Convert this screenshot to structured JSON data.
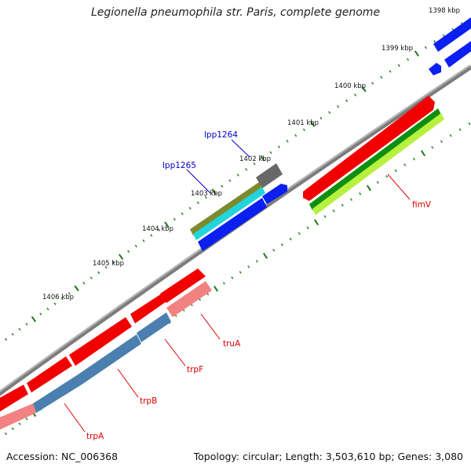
{
  "title": "Legionella pneumophila str. Paris, complete genome",
  "accession_text": "Accession: NC_006368",
  "summary_text": "Topology: circular; Length: 3,503,610 bp; Genes: 3,080",
  "colors": {
    "backbone": "#8a8a8a",
    "tick_major": "#1a7a1a",
    "tick_minor": "#2e8b2e",
    "label_red": "#dd0000",
    "label_blue": "#0000cc"
  },
  "scale_labels": [
    "1398 kbp",
    "1399 kbp",
    "1400 kbp",
    "1401 kbp",
    "1402 kbp",
    "1403 kbp",
    "1404 kbp",
    "1405 kbp",
    "1406 kbp"
  ],
  "gene_labels": [
    "lpp1264",
    "lpp1265",
    "fimV",
    "truA",
    "trpF",
    "trpB",
    "trpA"
  ]
}
